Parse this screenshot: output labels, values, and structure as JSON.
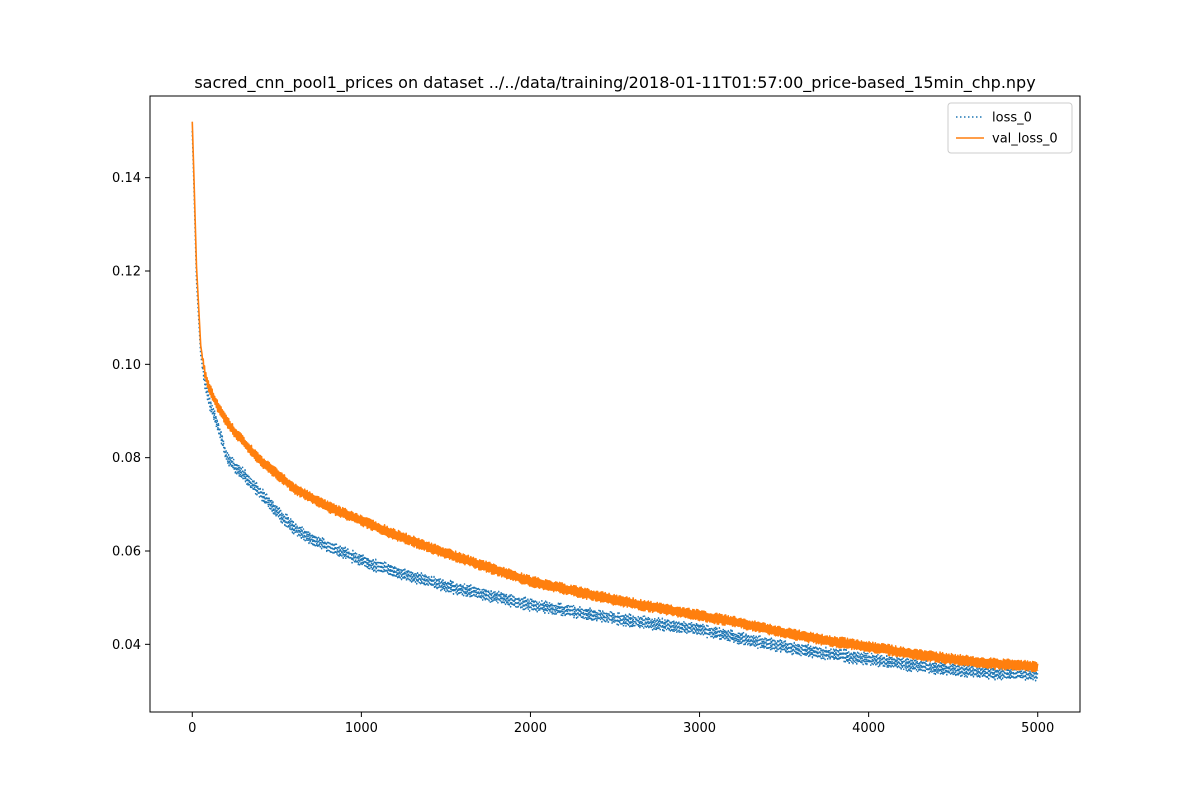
{
  "chart_data": {
    "type": "line",
    "title": "sacred_cnn_pool1_prices on dataset ../../data/training/2018-01-11T01:57:00_price-based_15min_chp.npy",
    "xlabel": "",
    "ylabel": "",
    "xlim": [
      -250,
      5250
    ],
    "ylim": [
      0.0255,
      0.1575
    ],
    "xticks": [
      0,
      1000,
      2000,
      3000,
      4000,
      5000
    ],
    "xtick_labels": [
      "0",
      "1000",
      "2000",
      "3000",
      "4000",
      "5000"
    ],
    "yticks": [
      0.04,
      0.06,
      0.08,
      0.1,
      0.12,
      0.14
    ],
    "ytick_labels": [
      "0.04",
      "0.06",
      "0.08",
      "0.10",
      "0.12",
      "0.14"
    ],
    "grid": false,
    "legend_position": "upper right",
    "series": [
      {
        "name": "loss_0",
        "color": "#1f77b4",
        "style": "dotted",
        "x": [
          0,
          10,
          25,
          50,
          75,
          100,
          150,
          200,
          250,
          300,
          350,
          400,
          500,
          600,
          700,
          800,
          1000,
          1200,
          1500,
          1750,
          2000,
          2250,
          2500,
          2750,
          3000,
          3250,
          3500,
          3750,
          4000,
          4250,
          4500,
          4750,
          5000
        ],
        "values": [
          0.15,
          0.138,
          0.118,
          0.102,
          0.096,
          0.092,
          0.087,
          0.0805,
          0.078,
          0.0765,
          0.0745,
          0.0725,
          0.0685,
          0.065,
          0.0625,
          0.061,
          0.058,
          0.0555,
          0.0525,
          0.0505,
          0.0485,
          0.047,
          0.0455,
          0.0443,
          0.0432,
          0.0412,
          0.0395,
          0.038,
          0.0368,
          0.0355,
          0.0345,
          0.0338,
          0.0335
        ]
      },
      {
        "name": "val_loss_0",
        "color": "#ff7f0e",
        "style": "solid",
        "x": [
          0,
          10,
          25,
          50,
          75,
          100,
          150,
          200,
          250,
          300,
          350,
          400,
          500,
          600,
          700,
          800,
          1000,
          1200,
          1500,
          1750,
          2000,
          2250,
          2500,
          2750,
          3000,
          3250,
          3500,
          3750,
          4000,
          4250,
          4500,
          4750,
          5000
        ],
        "values": [
          0.152,
          0.14,
          0.121,
          0.104,
          0.098,
          0.095,
          0.091,
          0.088,
          0.0855,
          0.0835,
          0.0815,
          0.0795,
          0.0765,
          0.0735,
          0.0715,
          0.0695,
          0.0665,
          0.0635,
          0.0595,
          0.0565,
          0.0535,
          0.0515,
          0.0495,
          0.0478,
          0.0462,
          0.0445,
          0.0425,
          0.0408,
          0.0395,
          0.038,
          0.0368,
          0.0358,
          0.0352
        ]
      }
    ]
  }
}
